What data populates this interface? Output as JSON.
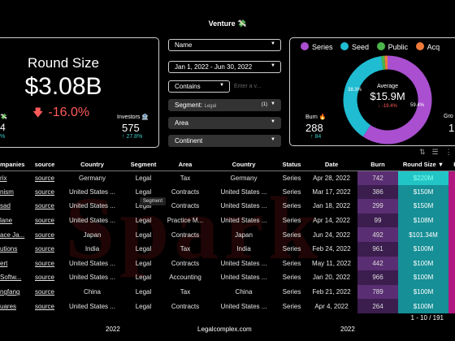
{
  "header": {
    "title": "Venture 💸"
  },
  "kpi": {
    "title": "Round Size",
    "value": "$3.08B",
    "delta": "-16.0%",
    "left_fragment": {
      "label": "💸",
      "value": "4",
      "delta": "%"
    },
    "investors": {
      "label": "Investors 🏦",
      "value": "575",
      "delta": "↑ 27.8%"
    }
  },
  "filters": {
    "name": "Name",
    "date_range": "Jan 1, 2022 - Jun 30, 2022",
    "contains": "Contains",
    "search_placeholder": "Enter a v...",
    "segment": "Segment",
    "segment_value": "Legal",
    "segment_count": "(1)",
    "area": "Area",
    "continent": "Continent"
  },
  "legend": [
    {
      "name": "Series",
      "color": "#a94fd0"
    },
    {
      "name": "Seed",
      "color": "#1fbcd2"
    },
    {
      "name": "Public",
      "color": "#4ab54a"
    },
    {
      "name": "Acq",
      "color": "#f07a3a"
    }
  ],
  "donut": {
    "label": "Average",
    "value": "$15.9M",
    "delta": "↓ -19.4%",
    "pct_seed": "38.3%",
    "pct_series": "59.4%",
    "slices": [
      {
        "name": "Series",
        "value": 59.4,
        "color": "#a94fd0"
      },
      {
        "name": "Seed",
        "value": 38.3,
        "color": "#1fbcd2"
      },
      {
        "name": "Public",
        "value": 1.2,
        "color": "#4ab54a"
      },
      {
        "name": "Acq",
        "value": 1.1,
        "color": "#f07a3a"
      }
    ]
  },
  "burn": {
    "label": "Burn 🔥",
    "value": "288",
    "delta": "↑ 84"
  },
  "gro": {
    "label": "Gro",
    "value": "1"
  },
  "table": {
    "columns": [
      "mpanies",
      "source",
      "Country",
      "Segment",
      "Area",
      "Country",
      "Status",
      "Date",
      "Burn",
      "Round Size ▼",
      "R"
    ],
    "rows": [
      [
        "rix",
        "source",
        "Germany",
        "Legal",
        "Tax",
        "Germany",
        "Series",
        "Apr 28, 2022",
        "742",
        "$220M"
      ],
      [
        "nism",
        "source",
        "United States ...",
        "Legal",
        "Contracts",
        "United States ...",
        "Series",
        "Mar 17, 2022",
        "386",
        "$150M"
      ],
      [
        "sad",
        "source",
        "United States ...",
        "Legal",
        "Contracts",
        "United States ...",
        "Series",
        "Jan 18, 2022",
        "299",
        "$150M"
      ],
      [
        "lane",
        "source",
        "United States ...",
        "Legal",
        "Practice M...",
        "United States ...",
        "Series",
        "Apr 14, 2022",
        "99",
        "$108M"
      ],
      [
        "ace Ja...",
        "source",
        "Japan",
        "Legal",
        "Contracts",
        "Japan",
        "Series",
        "Jun 24, 2022",
        "492",
        "$101.34M"
      ],
      [
        "utions",
        "source",
        "India",
        "Legal",
        "Tax",
        "India",
        "Series",
        "Feb 24, 2022",
        "961",
        "$100M"
      ],
      [
        "ert",
        "source",
        "United States ...",
        "Legal",
        "Contracts",
        "United States ...",
        "Series",
        "May 11, 2022",
        "442",
        "$100M"
      ],
      [
        "Softw...",
        "source",
        "United States ...",
        "Legal",
        "Accounting",
        "United States ...",
        "Series",
        "Jan 20, 2022",
        "966",
        "$100M"
      ],
      [
        "ngfang",
        "source",
        "China",
        "Legal",
        "Tax",
        "China",
        "Series",
        "Feb 21, 2022",
        "789",
        "$100M"
      ],
      [
        "uares",
        "source",
        "United States ...",
        "Legal",
        "Contracts",
        "United States ...",
        "Series",
        "Apr 4, 2022",
        "264",
        "$100M"
      ]
    ]
  },
  "tooltip": "Segment",
  "watermark": "Spark",
  "pager": "1 - 10 / 191",
  "footer": {
    "left": "2022",
    "center": "Legalcomplex.com",
    "right": "2022"
  }
}
